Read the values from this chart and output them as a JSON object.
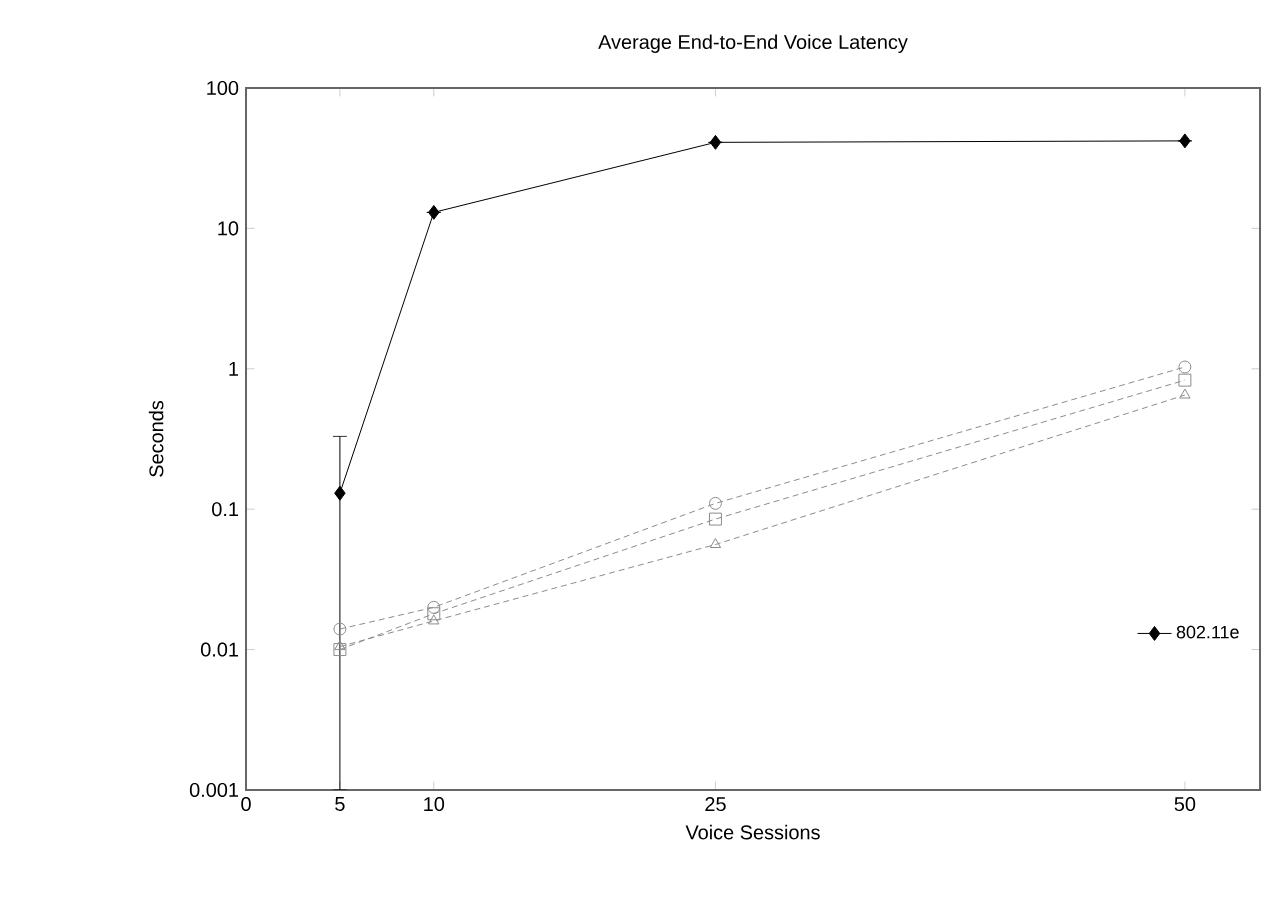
{
  "chart_data": {
    "type": "line",
    "title": "Average End-to-End Voice Latency",
    "xlabel": "Voice Sessions",
    "ylabel": "Seconds",
    "x": [
      5,
      10,
      25,
      50
    ],
    "log": "y",
    "xlim": [
      0,
      54
    ],
    "xticks": [
      0,
      5,
      10,
      25,
      50
    ],
    "ylim": [
      0.001,
      100
    ],
    "yticks": [
      0.001,
      0.01,
      0.1,
      1,
      10,
      100
    ],
    "legend": "bottom right",
    "grid": false,
    "series": [
      {
        "name": "802.11e",
        "color": "#000000",
        "values": [
          0.13,
          13,
          41,
          42
        ],
        "marker": "diamond",
        "line_style": "solid",
        "errors": [
          [
            0.001,
            0.33
          ],
          null,
          null,
          null
        ]
      },
      {
        "color": "#8c8c8c",
        "values": [
          0.01,
          0.018,
          0.085,
          0.83
        ],
        "marker": "square",
        "line_style": "dashed"
      },
      {
        "color": "#8c8c8c",
        "values": [
          0.014,
          0.02,
          0.11,
          1.03
        ],
        "marker": "circle",
        "line_style": "dashed"
      },
      {
        "color": "#8c8c8c",
        "values": [
          0.0105,
          0.016,
          0.056,
          0.65
        ],
        "marker": "triangle",
        "line_style": "dashed"
      }
    ]
  }
}
